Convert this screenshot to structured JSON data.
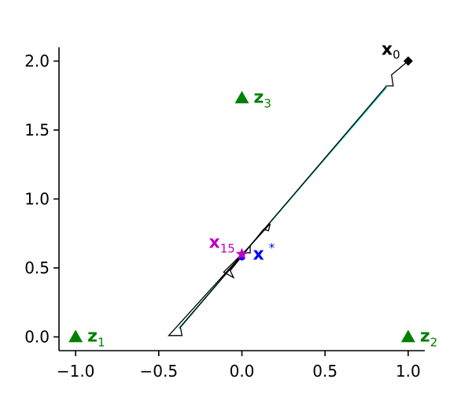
{
  "chart_data": {
    "type": "scatter",
    "title": "",
    "xlabel": "",
    "ylabel": "",
    "xlim": [
      -1.1,
      1.1
    ],
    "ylim": [
      -0.1,
      2.1
    ],
    "xticks": [
      -1.0,
      -0.5,
      0.0,
      0.5,
      1.0
    ],
    "xtick_labels": [
      "−1.0",
      "−0.5",
      "0.0",
      "0.5",
      "1.0"
    ],
    "yticks": [
      0.0,
      0.5,
      1.0,
      1.5,
      2.0
    ],
    "ytick_labels": [
      "0.0",
      "0.5",
      "1.0",
      "1.5",
      "2.0"
    ],
    "grid": false,
    "colors": {
      "anchor": "#008000",
      "path_line": "#00bfbf",
      "optimum": "#0000ff",
      "iterate": "#bf00bf",
      "start": "#000000"
    },
    "anchor_points": [
      {
        "x": -1.0,
        "y": 0.0,
        "label": "z",
        "sub": "1"
      },
      {
        "x": 1.0,
        "y": 0.0,
        "label": "z",
        "sub": "2"
      },
      {
        "x": 0.0,
        "y": 1.732,
        "label": "z",
        "sub": "3"
      }
    ],
    "start_point": {
      "x": 1.0,
      "y": 2.0,
      "label": "x",
      "sub": "0"
    },
    "optimum_point": {
      "x": 0.0,
      "y": 0.577,
      "label": "x",
      "sup": "*"
    },
    "final_point": {
      "x": 0.0,
      "y": 0.6,
      "label": "x",
      "sub": "15"
    },
    "cyan_line": [
      [
        -0.38,
        0.06
      ],
      [
        0.87,
        1.81
      ]
    ],
    "iterate_path": [
      [
        1.0,
        2.0
      ],
      [
        0.94,
        1.94
      ],
      [
        0.9,
        1.9
      ],
      [
        0.91,
        1.82
      ],
      [
        0.87,
        1.82
      ],
      [
        -0.37,
        0.07
      ],
      [
        -0.36,
        0.01
      ],
      [
        -0.44,
        0.01
      ],
      [
        0.17,
        0.82
      ],
      [
        0.16,
        0.77
      ],
      [
        0.13,
        0.78
      ],
      [
        -0.07,
        0.48
      ],
      [
        -0.05,
        0.43
      ],
      [
        -0.11,
        0.47
      ],
      [
        0.05,
        0.66
      ],
      [
        0.05,
        0.61
      ],
      [
        0.01,
        0.61
      ]
    ]
  }
}
